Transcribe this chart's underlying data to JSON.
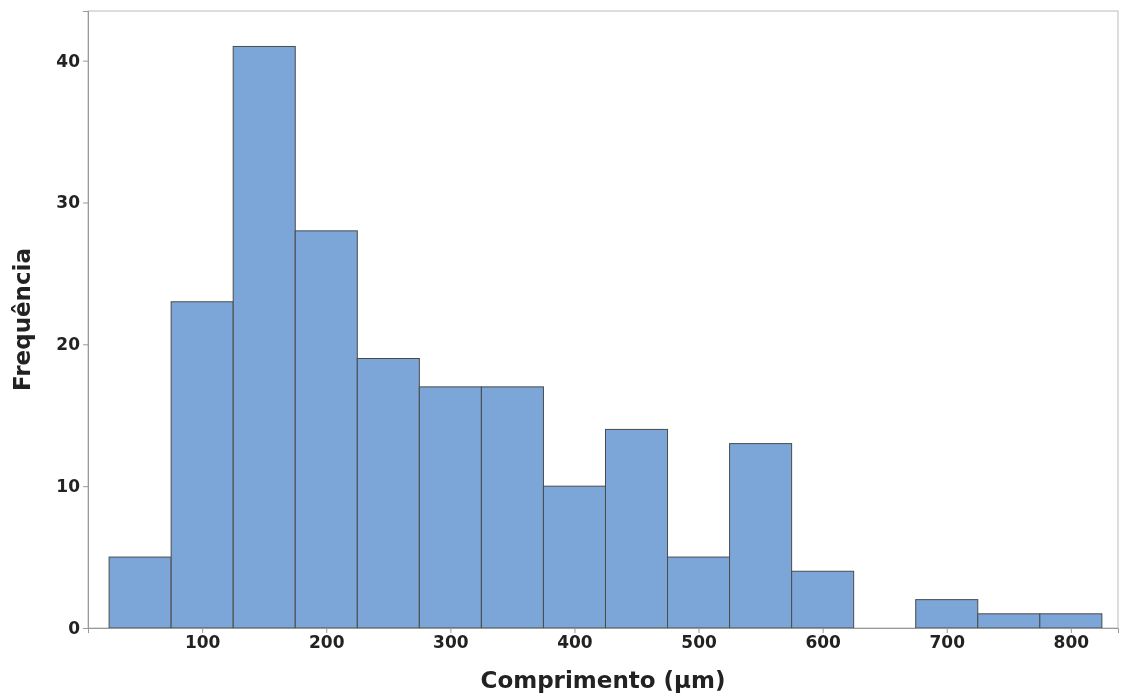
{
  "chart_data": {
    "type": "histogram",
    "xlabel": "Comprimento (µm)",
    "ylabel": "Frequência",
    "bins": [
      25,
      75,
      125,
      175,
      225,
      275,
      325,
      375,
      425,
      475,
      525,
      575,
      625,
      675,
      725,
      775,
      825
    ],
    "values": [
      5,
      23,
      41,
      28,
      19,
      17,
      17,
      10,
      14,
      5,
      13,
      4,
      0,
      2,
      1,
      1
    ],
    "color": "#7ca6d8",
    "xlim": [
      8,
      838
    ],
    "xticks": [
      100,
      200,
      300,
      400,
      500,
      600,
      700,
      800
    ],
    "ylim": [
      0,
      43.5
    ],
    "yticks": [
      0,
      10,
      20,
      30,
      40
    ],
    "grid": false
  }
}
